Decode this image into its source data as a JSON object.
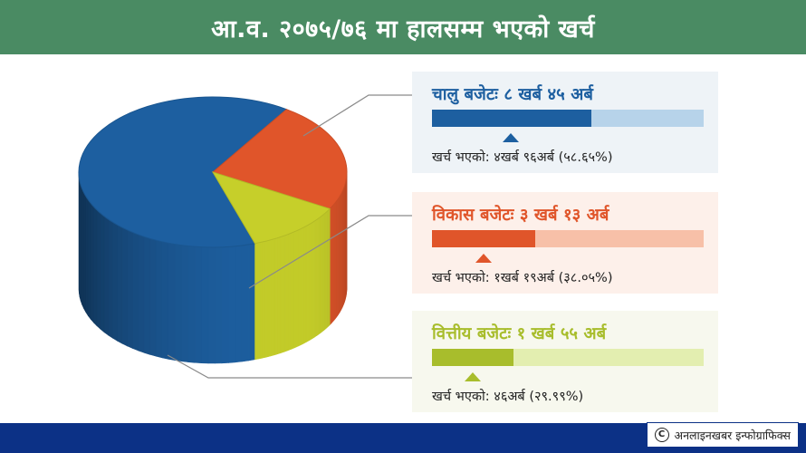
{
  "header": {
    "title": "आ.व. २०७५/७६ मा हालसम्म भएको खर्च"
  },
  "budgets": [
    {
      "name": "चालु बजेटः ८ खर्ब ४५ अर्ब",
      "spent_text": "खर्च भएको: ४खर्ब ९६अर्ब (५८.६५%)",
      "spent_pct": 58.65,
      "text_color": "#1d5fa0",
      "bar_color": "#1d5fa0",
      "track_color": "#b7d3ea",
      "bg": "#eef3f7"
    },
    {
      "name": "विकास बजेटः ३ खर्ब १३ अर्ब",
      "spent_text": "खर्च भएको: १खर्ब १९अर्ब (३८.०५%)",
      "spent_pct": 38.05,
      "text_color": "#e0552a",
      "bar_color": "#e0552a",
      "track_color": "#f7c0a8",
      "bg": "#fdf0ea"
    },
    {
      "name": "वित्तीय बजेटः १ खर्ब ५५ अर्ब",
      "spent_text": "खर्च भएको: ४६अर्ब (२९.९९%)",
      "spent_pct": 29.99,
      "text_color": "#a8bd2c",
      "bar_color": "#a8bd2c",
      "track_color": "#e3eeb0",
      "bg": "#f7f8ee"
    }
  ],
  "chart_data": {
    "type": "pie",
    "title": "आ.व. २०७५/७६ मा हालसम्म भएको खर्च",
    "style": "3d-cylinder",
    "series": [
      {
        "name": "चालु बजेटः ८ खर्ब ४५ अर्ब",
        "value": 845,
        "color": "#1d5fa0"
      },
      {
        "name": "विकास बजेटः ३ खर्ब १३ अर्ब",
        "value": 313,
        "color": "#e0552a"
      },
      {
        "name": "वित्तीय बजेटः १ खर्ब ५५ अर्ब",
        "value": 155,
        "color": "#c6cf2a"
      }
    ],
    "spent_pct": [
      58.65,
      38.05,
      29.99
    ]
  },
  "footer": {
    "credit": "अनलाइनखबर इन्फोग्राफिक्स",
    "copyright_symbol": "C"
  }
}
